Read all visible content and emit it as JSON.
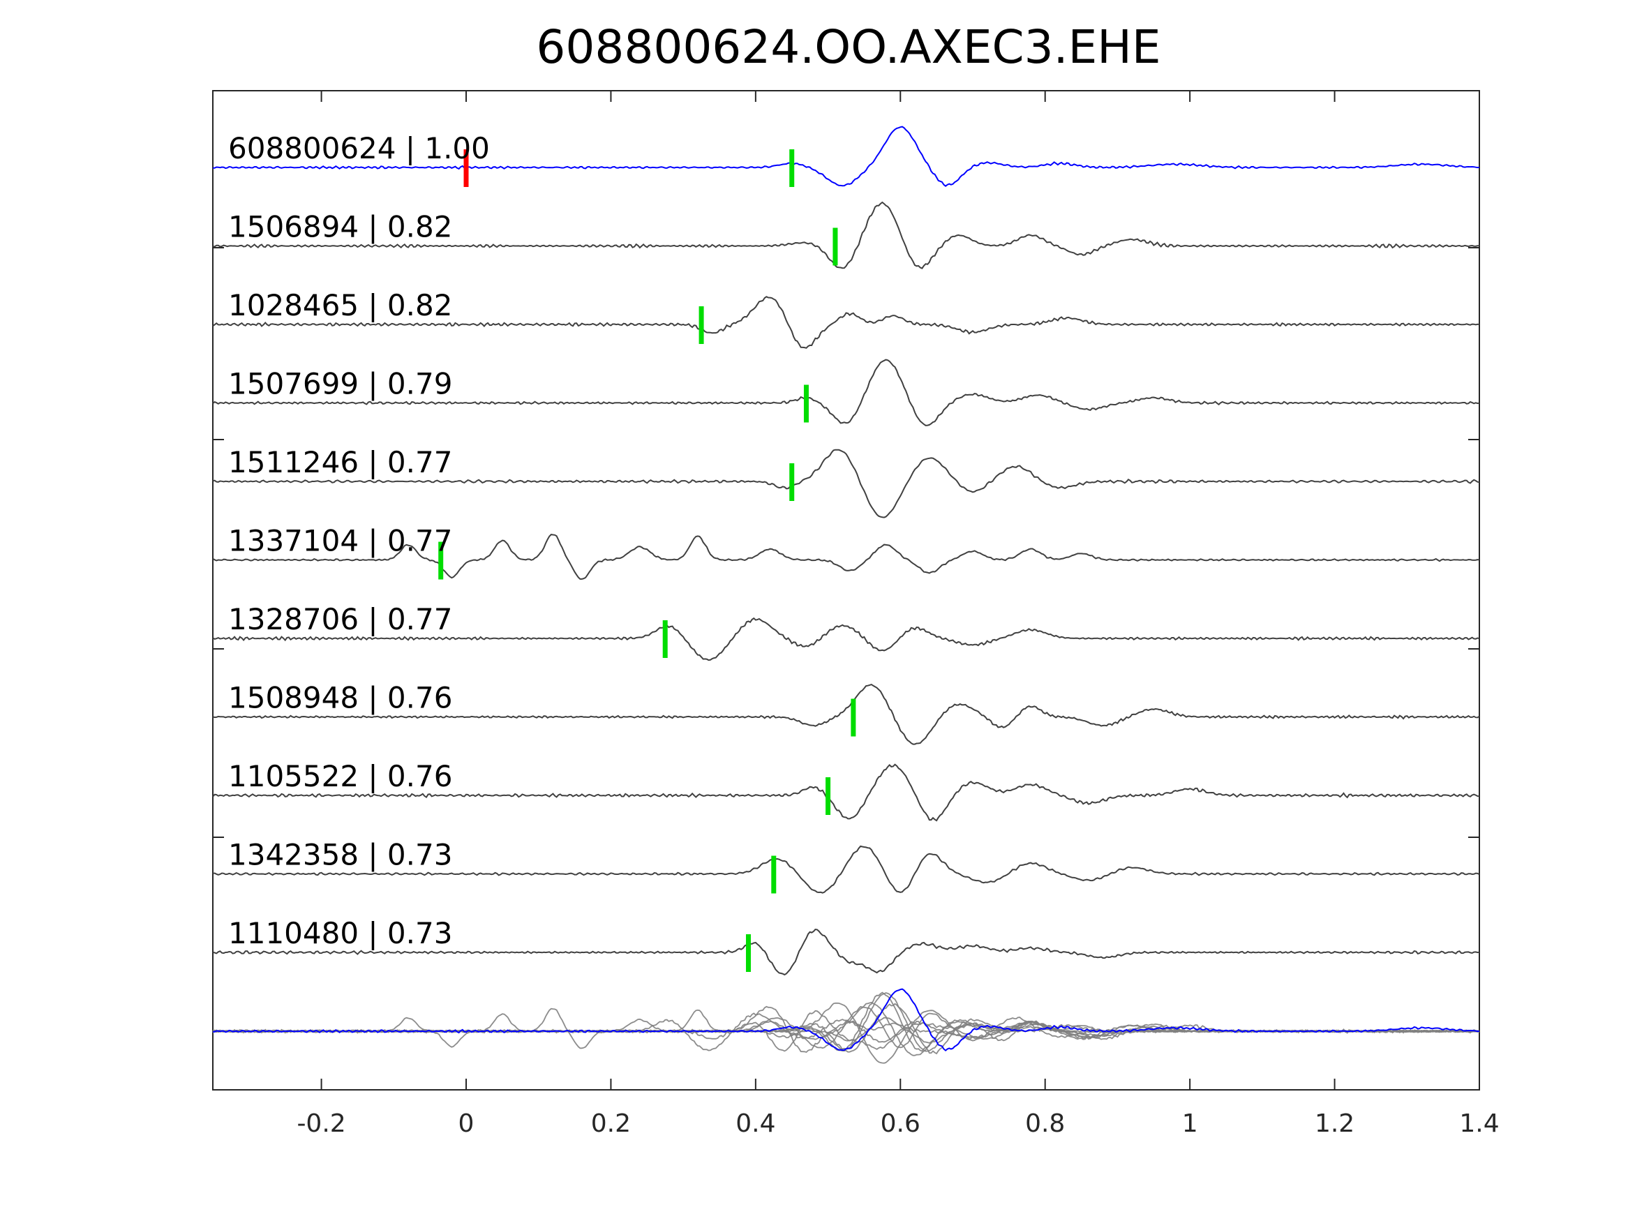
{
  "title": "608800624.OO.AXEC3.EHE",
  "chart_data": {
    "type": "line",
    "title": "608800624.OO.AXEC3.EHE",
    "xlim": [
      -0.35,
      1.4
    ],
    "x_ticks": [
      -0.2,
      0,
      0.2,
      0.4,
      0.6,
      0.8,
      1,
      1.2,
      1.4
    ],
    "x_tick_labels": [
      "-0.2",
      "0",
      "0.2",
      "0.4",
      "0.6",
      "0.8",
      "1",
      "1.2",
      "1.4"
    ],
    "grid": false,
    "reference_pick_time": 0,
    "colors": {
      "template_trace": "#0000ff",
      "match_trace": "#404040",
      "stack_trace": "#808080",
      "reference_pick": "#ff0000",
      "pick": "#00dd00",
      "axes": "#262626"
    },
    "traces": [
      {
        "label": "608800624 | 1.00",
        "id": "608800624",
        "cc": 1.0,
        "pick_time": 0.45,
        "template": true,
        "wavelets": [
          [
            0.45,
            0.1,
            0.025
          ],
          [
            0.52,
            -0.45,
            0.03
          ],
          [
            0.6,
            1.0,
            0.03
          ],
          [
            0.665,
            -0.45,
            0.025
          ],
          [
            0.72,
            0.12,
            0.03
          ],
          [
            0.82,
            0.1,
            0.03
          ],
          [
            0.98,
            0.08,
            0.05
          ],
          [
            1.32,
            0.08,
            0.05
          ]
        ]
      },
      {
        "label": "1506894 | 0.82",
        "id": "1506894",
        "cc": 0.82,
        "pick_time": 0.51,
        "template": false,
        "wavelets": [
          [
            0.47,
            0.08,
            0.03
          ],
          [
            0.52,
            -0.55,
            0.025
          ],
          [
            0.575,
            1.0,
            0.03
          ],
          [
            0.625,
            -0.55,
            0.025
          ],
          [
            0.68,
            0.25,
            0.025
          ],
          [
            0.78,
            0.25,
            0.025
          ],
          [
            0.85,
            -0.2,
            0.025
          ],
          [
            0.92,
            0.15,
            0.03
          ]
        ]
      },
      {
        "label": "1028465 | 0.82",
        "id": "1028465",
        "cc": 0.82,
        "pick_time": 0.325,
        "template": false,
        "wavelets": [
          [
            0.34,
            -0.2,
            0.02
          ],
          [
            0.42,
            0.65,
            0.03
          ],
          [
            0.465,
            -0.6,
            0.025
          ],
          [
            0.53,
            0.25,
            0.02
          ],
          [
            0.59,
            0.2,
            0.02
          ],
          [
            0.7,
            -0.18,
            0.03
          ],
          [
            0.83,
            0.15,
            0.03
          ]
        ]
      },
      {
        "label": "1507699 | 0.79",
        "id": "1507699",
        "cc": 0.79,
        "pick_time": 0.47,
        "template": false,
        "wavelets": [
          [
            0.47,
            0.12,
            0.02
          ],
          [
            0.525,
            -0.5,
            0.025
          ],
          [
            0.58,
            1.0,
            0.03
          ],
          [
            0.635,
            -0.55,
            0.025
          ],
          [
            0.7,
            0.2,
            0.03
          ],
          [
            0.79,
            0.18,
            0.03
          ],
          [
            0.86,
            -0.15,
            0.03
          ],
          [
            0.95,
            0.12,
            0.03
          ]
        ]
      },
      {
        "label": "1511246 | 0.77",
        "id": "1511246",
        "cc": 0.77,
        "pick_time": 0.45,
        "template": false,
        "wavelets": [
          [
            0.44,
            -0.15,
            0.02
          ],
          [
            0.515,
            0.75,
            0.03
          ],
          [
            0.575,
            -0.85,
            0.03
          ],
          [
            0.64,
            0.55,
            0.03
          ],
          [
            0.7,
            -0.25,
            0.025
          ],
          [
            0.76,
            0.35,
            0.03
          ],
          [
            0.82,
            -0.15,
            0.03
          ]
        ]
      },
      {
        "label": "1337104 | 0.77",
        "id": "1337104",
        "cc": 0.77,
        "pick_time": -0.035,
        "template": false,
        "wavelets": [
          [
            -0.08,
            0.35,
            0.015
          ],
          [
            -0.02,
            -0.4,
            0.015
          ],
          [
            0.05,
            0.45,
            0.015
          ],
          [
            0.12,
            0.6,
            0.015
          ],
          [
            0.16,
            -0.45,
            0.015
          ],
          [
            0.24,
            0.3,
            0.02
          ],
          [
            0.32,
            0.55,
            0.015
          ],
          [
            0.42,
            0.25,
            0.02
          ],
          [
            0.53,
            -0.25,
            0.02
          ],
          [
            0.58,
            0.35,
            0.02
          ],
          [
            0.64,
            -0.3,
            0.02
          ],
          [
            0.7,
            0.2,
            0.02
          ],
          [
            0.78,
            0.25,
            0.02
          ],
          [
            0.85,
            0.15,
            0.02
          ]
        ]
      },
      {
        "label": "1328706 | 0.77",
        "id": "1328706",
        "cc": 0.77,
        "pick_time": 0.275,
        "template": false,
        "wavelets": [
          [
            0.28,
            0.3,
            0.025
          ],
          [
            0.335,
            -0.5,
            0.03
          ],
          [
            0.4,
            0.45,
            0.03
          ],
          [
            0.47,
            -0.2,
            0.025
          ],
          [
            0.52,
            0.3,
            0.03
          ],
          [
            0.575,
            -0.3,
            0.025
          ],
          [
            0.62,
            0.25,
            0.025
          ],
          [
            0.7,
            -0.15,
            0.03
          ],
          [
            0.78,
            0.2,
            0.03
          ]
        ]
      },
      {
        "label": "1508948 | 0.76",
        "id": "1508948",
        "cc": 0.76,
        "pick_time": 0.535,
        "template": false,
        "wavelets": [
          [
            0.48,
            -0.2,
            0.025
          ],
          [
            0.56,
            0.75,
            0.03
          ],
          [
            0.62,
            -0.65,
            0.03
          ],
          [
            0.68,
            0.3,
            0.03
          ],
          [
            0.74,
            -0.25,
            0.02
          ],
          [
            0.78,
            0.25,
            0.02
          ],
          [
            0.88,
            -0.2,
            0.03
          ],
          [
            0.95,
            0.18,
            0.03
          ]
        ]
      },
      {
        "label": "1105522 | 0.76",
        "id": "1105522",
        "cc": 0.76,
        "pick_time": 0.5,
        "template": false,
        "wavelets": [
          [
            0.48,
            0.2,
            0.02
          ],
          [
            0.53,
            -0.55,
            0.025
          ],
          [
            0.59,
            0.7,
            0.03
          ],
          [
            0.645,
            -0.6,
            0.025
          ],
          [
            0.7,
            0.3,
            0.03
          ],
          [
            0.78,
            0.25,
            0.03
          ],
          [
            0.86,
            -0.18,
            0.03
          ],
          [
            1.0,
            0.15,
            0.03
          ]
        ]
      },
      {
        "label": "1342358 | 0.73",
        "id": "1342358",
        "cc": 0.73,
        "pick_time": 0.425,
        "template": false,
        "wavelets": [
          [
            0.43,
            0.35,
            0.03
          ],
          [
            0.49,
            -0.45,
            0.03
          ],
          [
            0.55,
            0.65,
            0.03
          ],
          [
            0.6,
            -0.5,
            0.025
          ],
          [
            0.64,
            0.5,
            0.025
          ],
          [
            0.72,
            -0.2,
            0.03
          ],
          [
            0.78,
            0.25,
            0.03
          ],
          [
            0.86,
            -0.15,
            0.03
          ],
          [
            0.92,
            0.15,
            0.03
          ]
        ]
      },
      {
        "label": "1110480 | 0.73",
        "id": "1110480",
        "cc": 0.73,
        "pick_time": 0.39,
        "template": false,
        "wavelets": [
          [
            0.4,
            0.25,
            0.02
          ],
          [
            0.44,
            -0.55,
            0.025
          ],
          [
            0.48,
            0.55,
            0.025
          ],
          [
            0.53,
            -0.2,
            0.02
          ],
          [
            0.57,
            -0.45,
            0.025
          ],
          [
            0.63,
            0.2,
            0.03
          ],
          [
            0.7,
            0.15,
            0.03
          ],
          [
            0.78,
            0.1,
            0.03
          ],
          [
            0.88,
            -0.12,
            0.03
          ]
        ]
      }
    ]
  }
}
